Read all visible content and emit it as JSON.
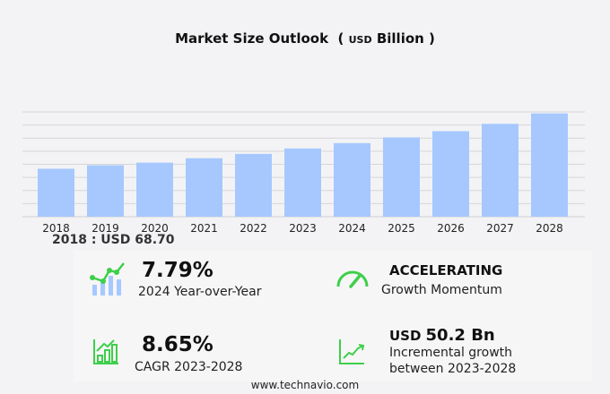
{
  "title": {
    "main": "Market Size Outlook",
    "unit": "USD",
    "unit2": "Billion"
  },
  "chart_data": {
    "type": "bar",
    "categories": [
      "2018",
      "2019",
      "2020",
      "2021",
      "2022",
      "2023",
      "2024",
      "2025",
      "2026",
      "2027",
      "2028"
    ],
    "values": [
      68.7,
      73.7,
      77.4,
      83.7,
      89.9,
      97.7,
      105.3,
      113.5,
      122.5,
      133.0,
      147.9
    ],
    "ylim": [
      0,
      150
    ],
    "grid": true,
    "bar_color": "#a6c8ff"
  },
  "base_label": "2018 : USD  68.70",
  "stats": {
    "yoy": {
      "value": "7.79%",
      "label": "2024 Year-over-Year"
    },
    "momentum": {
      "value": "ACCELERATING",
      "label": "Growth Momentum"
    },
    "cagr": {
      "value": "8.65%",
      "label": "CAGR 2023-2028"
    },
    "incremental": {
      "prefix": "USD",
      "value": "50.2 Bn",
      "label1": "Incremental growth",
      "label2": "between 2023-2028"
    }
  },
  "icon_color": "#3ecf4a",
  "footer": "www.technavio.com"
}
